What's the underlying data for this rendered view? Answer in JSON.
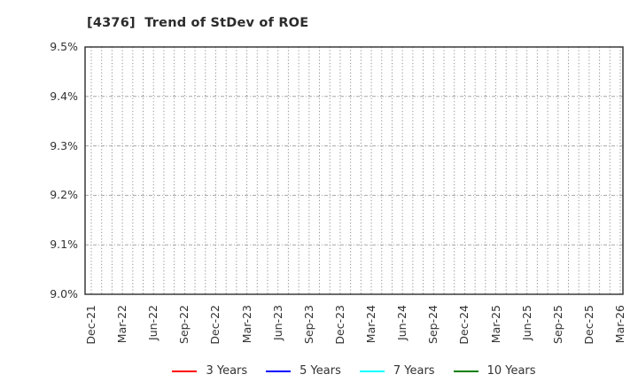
{
  "chart_data": {
    "type": "line",
    "title": "[4376]  Trend of StDev of ROE",
    "xlabel": "",
    "ylabel": "",
    "ylim": [
      9.0,
      9.5
    ],
    "y_ticks": [
      9.0,
      9.1,
      9.2,
      9.3,
      9.4,
      9.5
    ],
    "y_tick_labels": [
      "9.0%",
      "9.1%",
      "9.2%",
      "9.3%",
      "9.4%",
      "9.5%"
    ],
    "x_tick_labels": [
      "Dec-21",
      "Mar-22",
      "Jun-22",
      "Sep-22",
      "Dec-22",
      "Mar-23",
      "Jun-23",
      "Sep-23",
      "Dec-23",
      "Mar-24",
      "Jun-24",
      "Sep-24",
      "Dec-24",
      "Mar-25",
      "Jun-25",
      "Sep-25",
      "Dec-25",
      "Mar-26"
    ],
    "x_gridline_interval": "monthly",
    "grid": "on",
    "legend_position": "bottom",
    "series": [
      {
        "name": "3 Years",
        "color": "#ff0000",
        "values": []
      },
      {
        "name": "5 Years",
        "color": "#0000ff",
        "values": []
      },
      {
        "name": "7 Years",
        "color": "#00ffff",
        "values": []
      },
      {
        "name": "10 Years",
        "color": "#008000",
        "values": []
      }
    ]
  },
  "colors": {
    "background": "#ffffff",
    "frame": "#3a3a3a",
    "grid_vertical": "#8f8f8f",
    "grid_horizontal": "#a6a6a6",
    "text": "#333333"
  }
}
